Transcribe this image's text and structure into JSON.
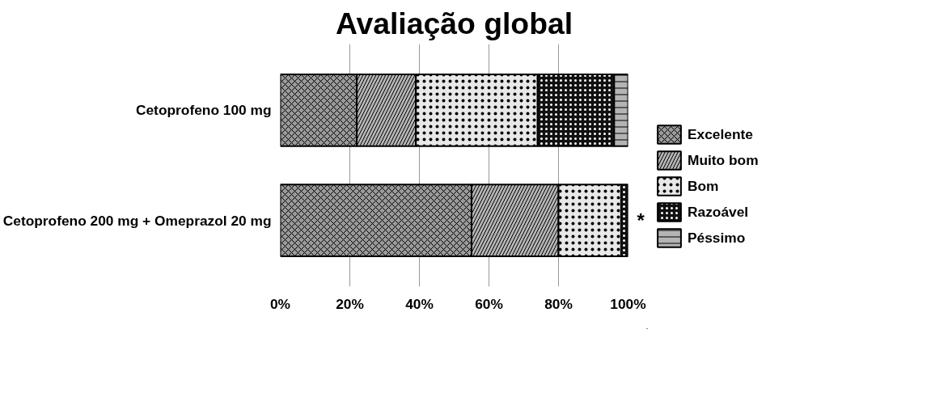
{
  "chart_data": {
    "type": "bar",
    "title": "Avaliação global",
    "orientation": "horizontal",
    "stacked": true,
    "categories": [
      "Cetoprofeno 100 mg",
      "Cetoprofeno 200 mg + Omeprazol 20 mg"
    ],
    "series": [
      {
        "name": "Excelente",
        "color": "#9a9a9a",
        "values": [
          22,
          55
        ]
      },
      {
        "name": "Muito bom",
        "color": "#b4b4b4",
        "values": [
          17,
          25
        ]
      },
      {
        "name": "Bom",
        "color": "#e8e8e8",
        "values": [
          35,
          18
        ]
      },
      {
        "name": "Razoável",
        "color": "#111111",
        "values": [
          22,
          2
        ]
      },
      {
        "name": "Péssimo",
        "color": "#b4b4b4",
        "values": [
          4,
          0
        ]
      }
    ],
    "xlim": [
      0,
      100
    ],
    "xticks": [
      {
        "value": 0,
        "label": "0%"
      },
      {
        "value": 20,
        "label": "20%"
      },
      {
        "value": 40,
        "label": "40%"
      },
      {
        "value": 60,
        "label": "60%"
      },
      {
        "value": 80,
        "label": "80%"
      },
      {
        "value": 100,
        "label": "100%"
      }
    ],
    "grid": "x",
    "legend": "right",
    "annotations": [
      {
        "text": "*",
        "x": 100,
        "y": "Cetoprofeno 200 mg + Omeprazol 20 mg"
      }
    ]
  }
}
